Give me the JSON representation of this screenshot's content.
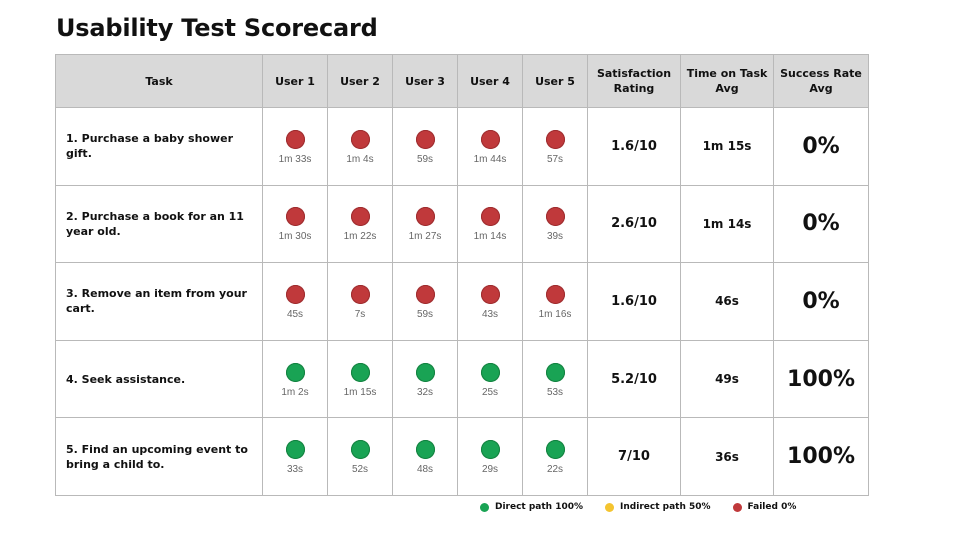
{
  "title": "Usability Test Scorecard",
  "colors": {
    "direct": "#19a354",
    "indirect": "#f4c430",
    "failed": "#c0393b",
    "header_bg": "#d9d9d9"
  },
  "headers": {
    "task": "Task",
    "users": [
      "User 1",
      "User 2",
      "User 3",
      "User 4",
      "User 5"
    ],
    "satisfaction": "Satisfaction Rating",
    "time_on_task": "Time on Task Avg",
    "success_rate": "Success Rate Avg"
  },
  "rows": [
    {
      "task": "1. Purchase a baby shower gift.",
      "results": [
        {
          "status": "failed",
          "time": "1m 33s"
        },
        {
          "status": "failed",
          "time": "1m 4s"
        },
        {
          "status": "failed",
          "time": "59s"
        },
        {
          "status": "failed",
          "time": "1m 44s"
        },
        {
          "status": "failed",
          "time": "57s"
        }
      ],
      "satisfaction": "1.6/10",
      "time_on_task": "1m 15s",
      "success_rate": "0%"
    },
    {
      "task": "2. Purchase a book for an 11 year old.",
      "results": [
        {
          "status": "failed",
          "time": "1m 30s"
        },
        {
          "status": "failed",
          "time": "1m 22s"
        },
        {
          "status": "failed",
          "time": "1m 27s"
        },
        {
          "status": "failed",
          "time": "1m 14s"
        },
        {
          "status": "failed",
          "time": "39s"
        }
      ],
      "satisfaction": "2.6/10",
      "time_on_task": "1m 14s",
      "success_rate": "0%"
    },
    {
      "task": "3. Remove an item from your cart.",
      "results": [
        {
          "status": "failed",
          "time": "45s"
        },
        {
          "status": "failed",
          "time": "7s"
        },
        {
          "status": "failed",
          "time": "59s"
        },
        {
          "status": "failed",
          "time": "43s"
        },
        {
          "status": "failed",
          "time": "1m 16s"
        }
      ],
      "satisfaction": "1.6/10",
      "time_on_task": "46s",
      "success_rate": "0%"
    },
    {
      "task": "4. Seek assistance.",
      "results": [
        {
          "status": "direct",
          "time": "1m 2s"
        },
        {
          "status": "direct",
          "time": "1m 15s"
        },
        {
          "status": "direct",
          "time": "32s"
        },
        {
          "status": "direct",
          "time": "25s"
        },
        {
          "status": "direct",
          "time": "53s"
        }
      ],
      "satisfaction": "5.2/10",
      "time_on_task": "49s",
      "success_rate": "100%"
    },
    {
      "task": "5. Find an upcoming event to bring a child to.",
      "results": [
        {
          "status": "direct",
          "time": "33s"
        },
        {
          "status": "direct",
          "time": "52s"
        },
        {
          "status": "direct",
          "time": "48s"
        },
        {
          "status": "direct",
          "time": "29s"
        },
        {
          "status": "direct",
          "time": "22s"
        }
      ],
      "satisfaction": "7/10",
      "time_on_task": "36s",
      "success_rate": "100%"
    }
  ],
  "legend": [
    {
      "status": "direct",
      "label": "Direct path 100%"
    },
    {
      "status": "indirect",
      "label": "Indirect path 50%"
    },
    {
      "status": "failed",
      "label": "Failed 0%"
    }
  ]
}
